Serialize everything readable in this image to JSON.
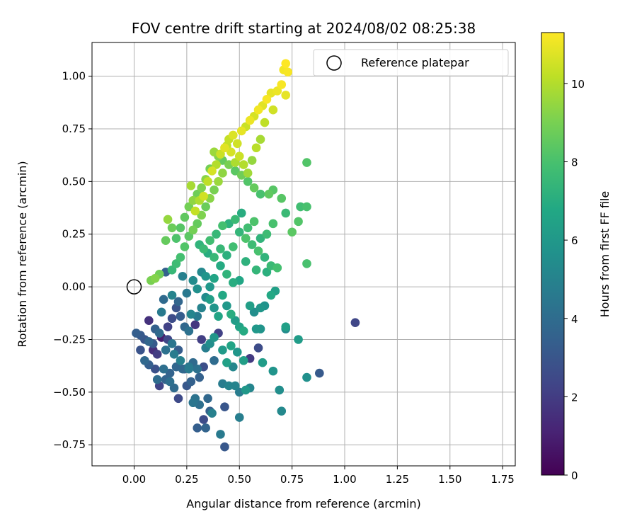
{
  "chart_data": {
    "type": "scatter",
    "title": "FOV centre drift starting at 2024/08/02 08:25:38",
    "xlabel": "Angular distance from reference (arcmin)",
    "ylabel": "Rotation from reference (arcmin)",
    "xlim": [
      -0.2,
      1.81
    ],
    "ylim": [
      -0.85,
      1.16
    ],
    "xticks": [
      "0.00",
      "0.25",
      "0.50",
      "0.75",
      "1.00",
      "1.25",
      "1.50",
      "1.75"
    ],
    "yticks": [
      "-0.75",
      "-0.50",
      "-0.25",
      "0.00",
      "0.25",
      "0.50",
      "0.75",
      "1.00"
    ],
    "grid": true,
    "legend_placement": "upper right",
    "legend_entries": [
      "Reference platepar"
    ],
    "reference_point": {
      "x": 0.0,
      "y": 0.0
    },
    "colorbar": {
      "label": "Hours from first FF file",
      "min": 0,
      "max": 11.3,
      "ticks": [
        "0",
        "2",
        "4",
        "6",
        "8",
        "10"
      ],
      "colormap": "viridis"
    },
    "points": [
      [
        1.05,
        -0.17,
        2.4
      ],
      [
        0.88,
        -0.41,
        3.2
      ],
      [
        0.82,
        -0.43,
        5.6
      ],
      [
        0.82,
        0.11,
        8.0
      ],
      [
        0.78,
        -0.25,
        6.2
      ],
      [
        0.72,
        -0.2,
        5.4
      ],
      [
        0.72,
        -0.19,
        6.4
      ],
      [
        0.7,
        -0.59,
        5.3
      ],
      [
        0.69,
        -0.49,
        5.5
      ],
      [
        0.66,
        -0.4,
        5.8
      ],
      [
        0.61,
        -0.36,
        6.2
      ],
      [
        0.59,
        -0.29,
        2.6
      ],
      [
        0.6,
        -0.2,
        5.8
      ],
      [
        0.58,
        -0.2,
        6.0
      ],
      [
        0.55,
        -0.34,
        1.9
      ],
      [
        0.52,
        -0.35,
        6.3
      ],
      [
        0.49,
        -0.31,
        5.9
      ],
      [
        0.46,
        -0.28,
        6.6
      ],
      [
        0.44,
        -0.36,
        6.4
      ],
      [
        0.42,
        -0.46,
        4.7
      ],
      [
        0.45,
        -0.47,
        5.0
      ],
      [
        0.47,
        -0.38,
        5.2
      ],
      [
        0.5,
        -0.5,
        4.7
      ],
      [
        0.5,
        -0.62,
        4.8
      ],
      [
        0.48,
        -0.47,
        5.0
      ],
      [
        0.53,
        -0.49,
        6.0
      ],
      [
        0.55,
        -0.48,
        5.1
      ],
      [
        0.43,
        -0.57,
        3.0
      ],
      [
        0.41,
        -0.7,
        4.6
      ],
      [
        0.43,
        -0.76,
        3.1
      ],
      [
        0.37,
        -0.6,
        4.9
      ],
      [
        0.35,
        -0.53,
        3.8
      ],
      [
        0.36,
        -0.59,
        3.5
      ],
      [
        0.33,
        -0.63,
        2.6
      ],
      [
        0.34,
        -0.67,
        3.6
      ],
      [
        0.3,
        -0.67,
        3.4
      ],
      [
        0.31,
        -0.56,
        4.1
      ],
      [
        0.29,
        -0.53,
        4.3
      ],
      [
        0.28,
        -0.55,
        4.4
      ],
      [
        0.27,
        -0.45,
        3.5
      ],
      [
        0.25,
        -0.47,
        3.1
      ],
      [
        0.21,
        -0.53,
        2.5
      ],
      [
        0.19,
        -0.48,
        3.9
      ],
      [
        0.17,
        -0.45,
        4.1
      ],
      [
        0.15,
        -0.44,
        3.6
      ],
      [
        0.12,
        -0.47,
        2.3
      ],
      [
        0.11,
        -0.44,
        4.0
      ],
      [
        0.1,
        -0.39,
        2.8
      ],
      [
        0.07,
        -0.37,
        3.4
      ],
      [
        0.05,
        -0.35,
        3.8
      ],
      [
        0.03,
        -0.3,
        2.9
      ],
      [
        0.01,
        -0.22,
        3.4
      ],
      [
        0.03,
        -0.23,
        3.2
      ],
      [
        0.05,
        -0.25,
        3.0
      ],
      [
        0.07,
        -0.16,
        1.6
      ],
      [
        0.07,
        -0.26,
        3.7
      ],
      [
        0.09,
        -0.27,
        3.2
      ],
      [
        0.1,
        -0.2,
        3.5
      ],
      [
        0.12,
        -0.22,
        3.9
      ],
      [
        0.13,
        -0.24,
        0.9
      ],
      [
        0.15,
        -0.3,
        4.2
      ],
      [
        0.16,
        -0.25,
        2.4
      ],
      [
        0.18,
        -0.27,
        4.4
      ],
      [
        0.2,
        -0.38,
        3.7
      ],
      [
        0.22,
        -0.35,
        4.9
      ],
      [
        0.24,
        -0.39,
        3.3
      ],
      [
        0.26,
        -0.38,
        4.5
      ],
      [
        0.28,
        -0.36,
        3.9
      ],
      [
        0.3,
        -0.39,
        4.2
      ],
      [
        0.29,
        -0.18,
        1.8
      ],
      [
        0.32,
        -0.25,
        2.1
      ],
      [
        0.34,
        -0.29,
        4.8
      ],
      [
        0.36,
        -0.27,
        5.5
      ],
      [
        0.38,
        -0.24,
        5.9
      ],
      [
        0.4,
        -0.22,
        2.2
      ],
      [
        0.42,
        -0.3,
        6.1
      ],
      [
        0.38,
        -0.35,
        4.0
      ],
      [
        0.33,
        -0.38,
        2.7
      ],
      [
        0.31,
        -0.43,
        3.5
      ],
      [
        0.26,
        -0.39,
        4.6
      ],
      [
        0.23,
        -0.39,
        3.8
      ],
      [
        0.21,
        -0.3,
        3.3
      ],
      [
        0.19,
        -0.32,
        4.7
      ],
      [
        0.17,
        -0.41,
        3.6
      ],
      [
        0.14,
        -0.39,
        4.1
      ],
      [
        0.13,
        -0.12,
        4.6
      ],
      [
        0.14,
        -0.06,
        3.9
      ],
      [
        0.15,
        0.07,
        3.5
      ],
      [
        0.18,
        -0.04,
        5.0
      ],
      [
        0.21,
        -0.07,
        3.7
      ],
      [
        0.23,
        0.05,
        4.9
      ],
      [
        0.25,
        -0.03,
        4.5
      ],
      [
        0.27,
        -0.13,
        5.1
      ],
      [
        0.28,
        0.03,
        5.4
      ],
      [
        0.3,
        -0.01,
        5.6
      ],
      [
        0.32,
        0.07,
        5.3
      ],
      [
        0.34,
        0.05,
        5.8
      ],
      [
        0.36,
        -0.06,
        6.3
      ],
      [
        0.38,
        -0.1,
        5.9
      ],
      [
        0.4,
        -0.14,
        6.6
      ],
      [
        0.42,
        -0.04,
        6.8
      ],
      [
        0.44,
        -0.09,
        6.0
      ],
      [
        0.46,
        -0.13,
        7.0
      ],
      [
        0.48,
        -0.16,
        6.2
      ],
      [
        0.5,
        -0.19,
        6.5
      ],
      [
        0.52,
        -0.21,
        6.9
      ],
      [
        0.55,
        -0.09,
        6.3
      ],
      [
        0.57,
        -0.12,
        5.5
      ],
      [
        0.6,
        -0.1,
        5.9
      ],
      [
        0.62,
        -0.09,
        5.7
      ],
      [
        0.65,
        -0.04,
        6.8
      ],
      [
        0.67,
        -0.02,
        6.4
      ],
      [
        0.63,
        0.07,
        7.1
      ],
      [
        0.58,
        0.08,
        7.4
      ],
      [
        0.53,
        0.12,
        7.2
      ],
      [
        0.5,
        0.03,
        6.7
      ],
      [
        0.47,
        0.02,
        7.0
      ],
      [
        0.44,
        0.06,
        7.3
      ],
      [
        0.41,
        0.1,
        6.9
      ],
      [
        0.38,
        0.14,
        7.5
      ],
      [
        0.35,
        0.16,
        7.0
      ],
      [
        0.33,
        0.18,
        7.6
      ],
      [
        0.31,
        0.2,
        7.3
      ],
      [
        0.36,
        0.22,
        7.8
      ],
      [
        0.39,
        0.25,
        7.5
      ],
      [
        0.42,
        0.29,
        7.9
      ],
      [
        0.45,
        0.3,
        7.2
      ],
      [
        0.48,
        0.32,
        7.6
      ],
      [
        0.51,
        0.35,
        7.0
      ],
      [
        0.54,
        0.28,
        7.8
      ],
      [
        0.57,
        0.31,
        8.1
      ],
      [
        0.6,
        0.23,
        7.3
      ],
      [
        0.63,
        0.25,
        7.7
      ],
      [
        0.66,
        0.3,
        8.0
      ],
      [
        0.7,
        0.42,
        8.3
      ],
      [
        0.72,
        0.35,
        7.6
      ],
      [
        0.75,
        0.26,
        8.4
      ],
      [
        0.78,
        0.31,
        8.2
      ],
      [
        0.79,
        0.38,
        7.8
      ],
      [
        0.82,
        0.38,
        8.0
      ],
      [
        0.82,
        0.59,
        8.2
      ],
      [
        0.66,
        0.46,
        8.3
      ],
      [
        0.64,
        0.44,
        8.5
      ],
      [
        0.6,
        0.44,
        8.0
      ],
      [
        0.57,
        0.47,
        8.6
      ],
      [
        0.54,
        0.5,
        8.2
      ],
      [
        0.51,
        0.53,
        8.8
      ],
      [
        0.48,
        0.55,
        8.4
      ],
      [
        0.45,
        0.58,
        9.0
      ],
      [
        0.42,
        0.6,
        8.6
      ],
      [
        0.4,
        0.62,
        9.2
      ],
      [
        0.38,
        0.64,
        9.6
      ],
      [
        0.36,
        0.56,
        8.9
      ],
      [
        0.34,
        0.51,
        9.3
      ],
      [
        0.32,
        0.47,
        9.1
      ],
      [
        0.3,
        0.44,
        8.8
      ],
      [
        0.28,
        0.41,
        9.4
      ],
      [
        0.26,
        0.38,
        8.9
      ],
      [
        0.24,
        0.33,
        8.5
      ],
      [
        0.22,
        0.28,
        8.3
      ],
      [
        0.2,
        0.23,
        8.1
      ],
      [
        0.18,
        0.28,
        8.7
      ],
      [
        0.16,
        0.32,
        9.5
      ],
      [
        0.15,
        0.22,
        8.6
      ],
      [
        0.12,
        0.06,
        8.8
      ],
      [
        0.1,
        0.04,
        9.2
      ],
      [
        0.08,
        0.03,
        9.0
      ],
      [
        0.27,
        0.48,
        9.8
      ],
      [
        0.29,
        0.36,
        10.3
      ],
      [
        0.31,
        0.41,
        9.9
      ],
      [
        0.33,
        0.43,
        10.5
      ],
      [
        0.35,
        0.5,
        10.2
      ],
      [
        0.37,
        0.55,
        10.6
      ],
      [
        0.39,
        0.58,
        10.0
      ],
      [
        0.41,
        0.63,
        10.4
      ],
      [
        0.43,
        0.66,
        10.8
      ],
      [
        0.45,
        0.7,
        10.3
      ],
      [
        0.47,
        0.72,
        10.7
      ],
      [
        0.49,
        0.68,
        10.5
      ],
      [
        0.51,
        0.74,
        10.9
      ],
      [
        0.53,
        0.76,
        10.4
      ],
      [
        0.55,
        0.79,
        11.0
      ],
      [
        0.57,
        0.81,
        10.6
      ],
      [
        0.59,
        0.84,
        11.1
      ],
      [
        0.61,
        0.86,
        10.8
      ],
      [
        0.63,
        0.89,
        11.2
      ],
      [
        0.65,
        0.92,
        10.9
      ],
      [
        0.68,
        0.93,
        11.0
      ],
      [
        0.7,
        0.96,
        11.2
      ],
      [
        0.71,
        1.03,
        11.1
      ],
      [
        0.72,
        1.06,
        11.3
      ],
      [
        0.73,
        1.02,
        11.2
      ],
      [
        0.72,
        0.91,
        10.9
      ],
      [
        0.66,
        0.84,
        10.5
      ],
      [
        0.62,
        0.78,
        10.2
      ],
      [
        0.6,
        0.7,
        9.8
      ],
      [
        0.58,
        0.66,
        10.1
      ],
      [
        0.56,
        0.6,
        9.5
      ],
      [
        0.54,
        0.54,
        9.7
      ],
      [
        0.52,
        0.58,
        10.0
      ],
      [
        0.5,
        0.62,
        10.4
      ],
      [
        0.48,
        0.59,
        9.9
      ],
      [
        0.46,
        0.64,
        10.6
      ],
      [
        0.44,
        0.67,
        10.2
      ],
      [
        0.42,
        0.54,
        9.4
      ],
      [
        0.4,
        0.5,
        9.6
      ],
      [
        0.38,
        0.46,
        9.0
      ],
      [
        0.36,
        0.42,
        9.3
      ],
      [
        0.34,
        0.38,
        8.7
      ],
      [
        0.32,
        0.34,
        9.1
      ],
      [
        0.3,
        0.3,
        8.6
      ],
      [
        0.28,
        0.27,
        8.9
      ],
      [
        0.26,
        0.24,
        8.4
      ],
      [
        0.24,
        0.19,
        8.2
      ],
      [
        0.22,
        0.14,
        7.9
      ],
      [
        0.2,
        0.11,
        7.7
      ],
      [
        0.18,
        0.08,
        7.5
      ],
      [
        0.62,
        0.14,
        7.3
      ],
      [
        0.65,
        0.1,
        7.6
      ],
      [
        0.68,
        0.09,
        7.9
      ],
      [
        0.59,
        0.17,
        8.0
      ],
      [
        0.56,
        0.2,
        7.7
      ],
      [
        0.53,
        0.23,
        8.1
      ],
      [
        0.5,
        0.26,
        7.4
      ],
      [
        0.47,
        0.19,
        7.8
      ],
      [
        0.44,
        0.15,
        7.1
      ],
      [
        0.41,
        0.18,
        7.5
      ],
      [
        0.38,
        0.04,
        6.6
      ],
      [
        0.36,
        0.0,
        6.0
      ],
      [
        0.34,
        -0.05,
        5.4
      ],
      [
        0.32,
        -0.1,
        5.0
      ],
      [
        0.3,
        -0.14,
        4.6
      ],
      [
        0.26,
        -0.21,
        4.2
      ],
      [
        0.24,
        -0.19,
        3.8
      ],
      [
        0.22,
        -0.14,
        3.3
      ],
      [
        0.2,
        -0.1,
        2.9
      ],
      [
        0.18,
        -0.15,
        2.6
      ],
      [
        0.16,
        -0.19,
        2.2
      ],
      [
        0.11,
        -0.32,
        2.0
      ],
      [
        0.09,
        -0.3,
        1.5
      ]
    ]
  }
}
